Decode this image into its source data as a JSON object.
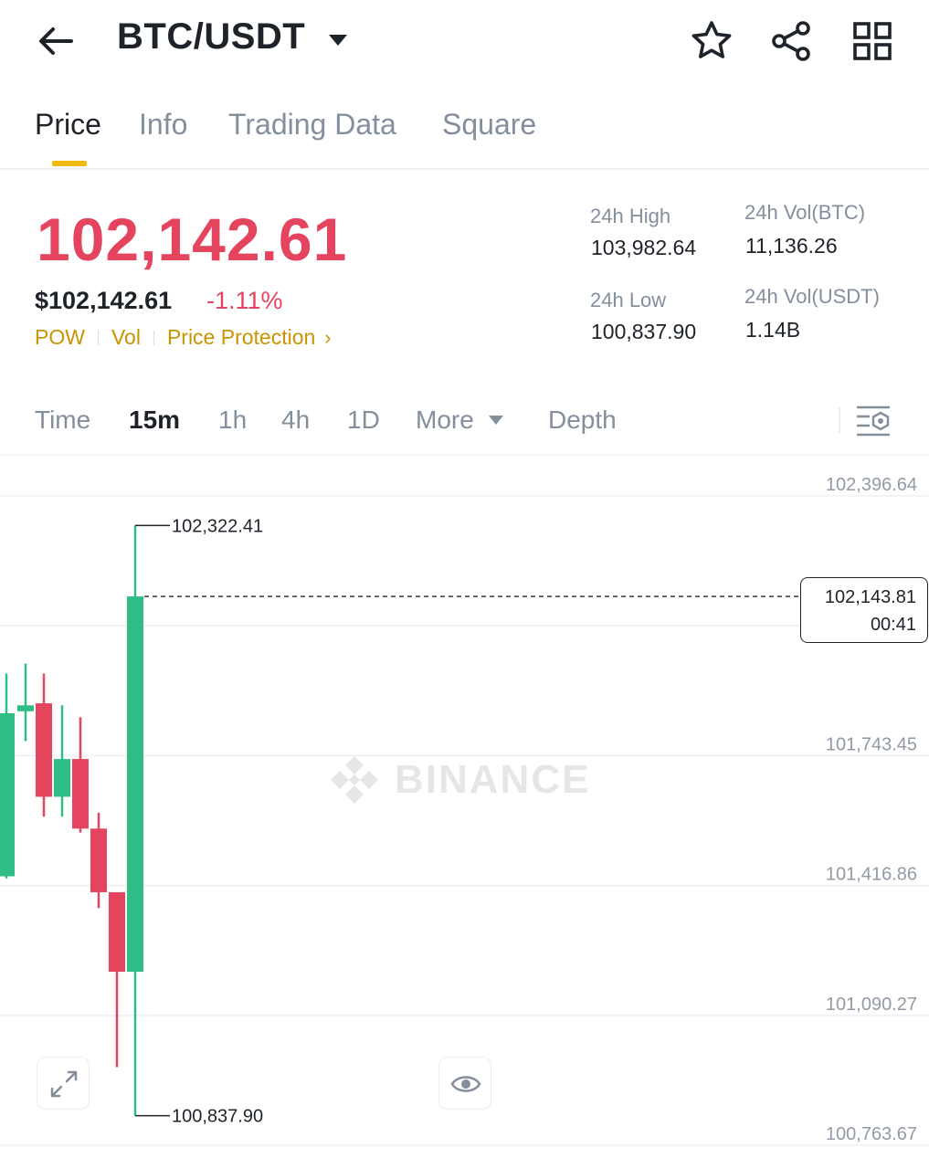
{
  "header": {
    "pair": "BTC/USDT",
    "icons": [
      "back-arrow-icon",
      "chevron-down-icon",
      "star-icon",
      "share-icon",
      "grid-icon"
    ]
  },
  "tabs": [
    {
      "label": "Price",
      "active": true
    },
    {
      "label": "Info",
      "active": false
    },
    {
      "label": "Trading Data",
      "active": false
    },
    {
      "label": "Square",
      "active": false
    }
  ],
  "ticker": {
    "last_price": "102,142.61",
    "usd_price": "$102,142.61",
    "change_pct": "-1.11%",
    "tags": [
      "POW",
      "Vol",
      "Price Protection"
    ],
    "stats": {
      "high_label": "24h High",
      "high_value": "103,982.64",
      "low_label": "24h Low",
      "low_value": "100,837.90",
      "vol_btc_label": "24h Vol(BTC)",
      "vol_btc_value": "11,136.26",
      "vol_usdt_label": "24h Vol(USDT)",
      "vol_usdt_value": "1.14B"
    }
  },
  "intervals": {
    "items": [
      "Time",
      "15m",
      "1h",
      "4h",
      "1D",
      "More",
      "Depth"
    ],
    "active": "15m"
  },
  "colors": {
    "up": "#2ebd85",
    "down": "#e5445f",
    "accent": "#f0b90b"
  },
  "chart": {
    "watermark": "BINANCE",
    "current_price": "102,143.81",
    "countdown": "00:41"
  },
  "chart_data": {
    "type": "candlestick",
    "y_axis_ticks": [
      "102,396.64",
      "101,743.45",
      "101,416.86",
      "101,090.27",
      "100,763.67"
    ],
    "ylim": [
      100763.67,
      102396.64
    ],
    "high_marker": "102,322.41",
    "low_marker": "100,837.90",
    "current_price": 102143.81,
    "candles": [
      {
        "open": 101440,
        "close": 101850,
        "high": 101950,
        "low": 101435,
        "dir": "up"
      },
      {
        "open": 101855,
        "close": 101870,
        "high": 101975,
        "low": 101780,
        "dir": "up"
      },
      {
        "open": 101875,
        "close": 101640,
        "high": 101950,
        "low": 101590,
        "dir": "down"
      },
      {
        "open": 101640,
        "close": 101735,
        "high": 101870,
        "low": 101590,
        "dir": "up"
      },
      {
        "open": 101735,
        "close": 101560,
        "high": 101840,
        "low": 101550,
        "dir": "down"
      },
      {
        "open": 101560,
        "close": 101400,
        "high": 101600,
        "low": 101360,
        "dir": "down"
      },
      {
        "open": 101400,
        "close": 101200,
        "high": 101400,
        "low": 100960,
        "dir": "down"
      },
      {
        "open": 101200,
        "close": 102143.81,
        "high": 102322.41,
        "low": 100837.9,
        "dir": "up"
      }
    ]
  }
}
